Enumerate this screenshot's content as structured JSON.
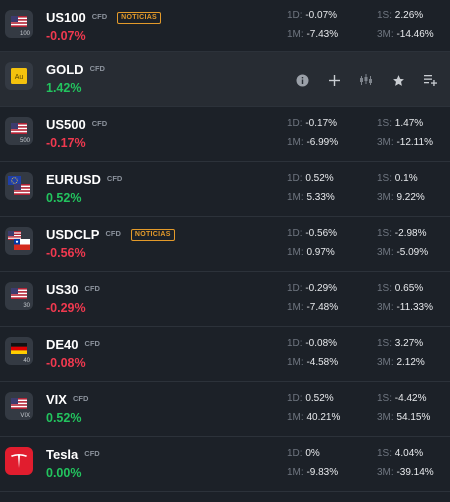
{
  "rows": [
    {
      "symbol": "US100",
      "type": "CFD",
      "badge": "NOTICIAS",
      "change": "-0.07%",
      "direction": "neg",
      "flag_icon": "us-flag-icon",
      "flag_sub": "100",
      "d1_label": "1D:",
      "d1": "-0.07%",
      "m1_label": "1M:",
      "m1": "-7.43%",
      "s1_label": "1S:",
      "s1": "2.26%",
      "m3_label": "3M:",
      "m3": "-14.46%"
    },
    {
      "symbol": "GOLD",
      "type": "CFD",
      "change": "1.42%",
      "direction": "pos",
      "flag_icon": "gold-icon",
      "flag_sub": "Au",
      "hovered": true,
      "toolbar": [
        "info-icon",
        "add-icon",
        "chart-icon",
        "star-icon",
        "add-to-list-icon"
      ]
    },
    {
      "symbol": "US500",
      "type": "CFD",
      "change": "-0.17%",
      "direction": "neg",
      "flag_icon": "us-flag-icon",
      "flag_sub": "500",
      "d1_label": "1D:",
      "d1": "-0.17%",
      "m1_label": "1M:",
      "m1": "-6.99%",
      "s1_label": "1S:",
      "s1": "1.47%",
      "m3_label": "3M:",
      "m3": "-12.11%"
    },
    {
      "symbol": "EURUSD",
      "type": "CFD",
      "change": "0.52%",
      "direction": "pos",
      "flag_icon": "eu-us-flag-icon",
      "d1_label": "1D:",
      "d1": "0.52%",
      "m1_label": "1M:",
      "m1": "5.33%",
      "s1_label": "1S:",
      "s1": "0.1%",
      "m3_label": "3M:",
      "m3": "9.22%"
    },
    {
      "symbol": "USDCLP",
      "type": "CFD",
      "badge": "NOTICIAS",
      "change": "-0.56%",
      "direction": "neg",
      "flag_icon": "us-cl-flag-icon",
      "d1_label": "1D:",
      "d1": "-0.56%",
      "m1_label": "1M:",
      "m1": "0.97%",
      "s1_label": "1S:",
      "s1": "-2.98%",
      "m3_label": "3M:",
      "m3": "-5.09%"
    },
    {
      "symbol": "US30",
      "type": "CFD",
      "change": "-0.29%",
      "direction": "neg",
      "flag_icon": "us-flag-icon",
      "flag_sub": "30",
      "d1_label": "1D:",
      "d1": "-0.29%",
      "m1_label": "1M:",
      "m1": "-7.48%",
      "s1_label": "1S:",
      "s1": "0.65%",
      "m3_label": "3M:",
      "m3": "-11.33%"
    },
    {
      "symbol": "DE40",
      "type": "CFD",
      "change": "-0.08%",
      "direction": "neg",
      "flag_icon": "de-flag-icon",
      "flag_sub": "40",
      "d1_label": "1D:",
      "d1": "-0.08%",
      "m1_label": "1M:",
      "m1": "-4.58%",
      "s1_label": "1S:",
      "s1": "3.27%",
      "m3_label": "3M:",
      "m3": "2.12%"
    },
    {
      "symbol": "VIX",
      "type": "CFD",
      "change": "0.52%",
      "direction": "pos",
      "flag_icon": "us-flag-icon",
      "flag_sub": "VIX",
      "d1_label": "1D:",
      "d1": "0.52%",
      "m1_label": "1M:",
      "m1": "40.21%",
      "s1_label": "1S:",
      "s1": "-4.42%",
      "m3_label": "3M:",
      "m3": "54.15%"
    },
    {
      "symbol": "Tesla",
      "type": "CFD",
      "change": "0.00%",
      "direction": "pos",
      "flag_icon": "tesla-logo-icon",
      "d1_label": "1D:",
      "d1": "0%",
      "m1_label": "1M:",
      "m1": "-9.83%",
      "s1_label": "1S:",
      "s1": "4.04%",
      "m3_label": "3M:",
      "m3": "-39.14%"
    }
  ],
  "colors": {
    "negative": "#f0394f",
    "positive": "#22c45e",
    "badge": "#e39a2a",
    "background": "#1c2128",
    "hover_row": "#272c33"
  }
}
